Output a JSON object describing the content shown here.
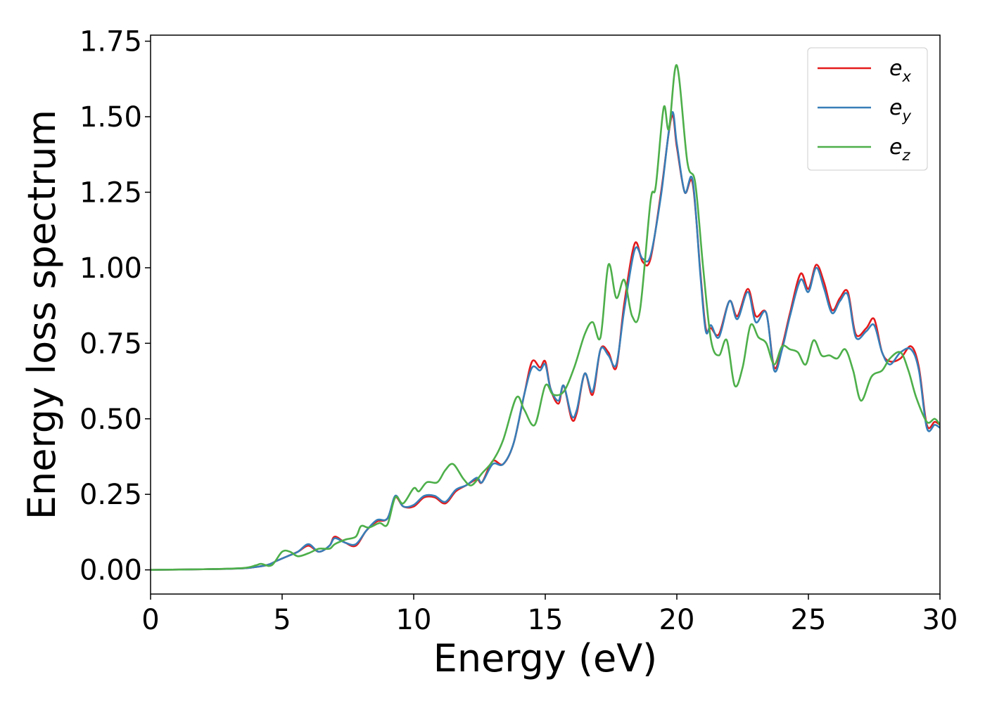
{
  "chart_data": {
    "type": "line",
    "xlabel": "Energy (eV)",
    "ylabel": "Energy loss spectrum",
    "xlim": [
      0,
      30
    ],
    "ylim": [
      -0.08,
      1.77
    ],
    "xticks": [
      "0",
      "5",
      "10",
      "15",
      "20",
      "25",
      "30"
    ],
    "yticks": [
      "0.00",
      "0.25",
      "0.50",
      "0.75",
      "1.00",
      "1.25",
      "1.50",
      "1.75"
    ],
    "grid": false,
    "legend_position": "top-right",
    "series": [
      {
        "name": "e_x",
        "legend_base": "e",
        "legend_sub": "x",
        "color": "#e41a1c",
        "x": [
          0,
          2,
          3.5,
          4.2,
          4.5,
          4.8,
          5.2,
          5.6,
          6.0,
          6.4,
          6.8,
          7.0,
          7.4,
          7.8,
          8.2,
          8.6,
          9.0,
          9.3,
          9.6,
          10.0,
          10.4,
          10.8,
          11.2,
          11.6,
          12.0,
          12.4,
          12.6,
          13.0,
          13.4,
          13.8,
          14.2,
          14.5,
          14.8,
          15.0,
          15.2,
          15.5,
          15.7,
          16.0,
          16.2,
          16.5,
          16.8,
          17.1,
          17.4,
          17.7,
          18.0,
          18.4,
          18.7,
          19.0,
          19.4,
          19.8,
          20.0,
          20.3,
          20.6,
          20.9,
          21.1,
          21.3,
          21.6,
          22.0,
          22.3,
          22.7,
          23.0,
          23.4,
          23.7,
          24.0,
          24.3,
          24.7,
          25.0,
          25.3,
          25.6,
          25.9,
          26.2,
          26.5,
          26.8,
          27.2,
          27.5,
          27.8,
          28.1,
          28.5,
          28.9,
          29.2,
          29.5,
          29.8,
          30
        ],
        "y": [
          0.0,
          0.002,
          0.005,
          0.012,
          0.018,
          0.03,
          0.045,
          0.06,
          0.08,
          0.06,
          0.08,
          0.11,
          0.09,
          0.08,
          0.13,
          0.16,
          0.17,
          0.24,
          0.21,
          0.21,
          0.24,
          0.24,
          0.22,
          0.26,
          0.28,
          0.3,
          0.29,
          0.36,
          0.35,
          0.42,
          0.58,
          0.69,
          0.67,
          0.69,
          0.6,
          0.55,
          0.61,
          0.5,
          0.52,
          0.65,
          0.58,
          0.73,
          0.72,
          0.67,
          0.88,
          1.08,
          1.02,
          1.03,
          1.25,
          1.5,
          1.4,
          1.25,
          1.28,
          0.98,
          0.8,
          0.8,
          0.78,
          0.89,
          0.84,
          0.93,
          0.84,
          0.85,
          0.67,
          0.74,
          0.85,
          0.98,
          0.93,
          1.01,
          0.95,
          0.86,
          0.9,
          0.92,
          0.78,
          0.8,
          0.83,
          0.72,
          0.69,
          0.7,
          0.74,
          0.67,
          0.48,
          0.49,
          0.48
        ]
      },
      {
        "name": "e_y",
        "legend_base": "e",
        "legend_sub": "y",
        "color": "#377eb8",
        "x": [
          0,
          2,
          3.5,
          4.2,
          4.5,
          4.8,
          5.2,
          5.6,
          6.0,
          6.4,
          6.8,
          7.0,
          7.4,
          7.8,
          8.2,
          8.6,
          9.0,
          9.3,
          9.6,
          10.0,
          10.4,
          10.8,
          11.2,
          11.6,
          12.0,
          12.4,
          12.6,
          13.0,
          13.4,
          13.8,
          14.2,
          14.5,
          14.8,
          15.0,
          15.2,
          15.5,
          15.7,
          16.0,
          16.2,
          16.5,
          16.8,
          17.1,
          17.4,
          17.7,
          18.0,
          18.4,
          18.7,
          19.0,
          19.4,
          19.8,
          20.0,
          20.3,
          20.6,
          20.9,
          21.1,
          21.3,
          21.6,
          22.0,
          22.3,
          22.7,
          23.0,
          23.4,
          23.7,
          24.0,
          24.3,
          24.7,
          25.0,
          25.3,
          25.6,
          25.9,
          26.2,
          26.5,
          26.8,
          27.2,
          27.5,
          27.8,
          28.1,
          28.5,
          28.9,
          29.2,
          29.5,
          29.8,
          30
        ],
        "y": [
          0.0,
          0.002,
          0.005,
          0.012,
          0.018,
          0.03,
          0.045,
          0.06,
          0.085,
          0.06,
          0.08,
          0.105,
          0.09,
          0.085,
          0.13,
          0.165,
          0.17,
          0.245,
          0.21,
          0.215,
          0.245,
          0.245,
          0.225,
          0.265,
          0.28,
          0.305,
          0.29,
          0.35,
          0.35,
          0.42,
          0.58,
          0.67,
          0.66,
          0.68,
          0.6,
          0.56,
          0.61,
          0.51,
          0.53,
          0.65,
          0.59,
          0.73,
          0.71,
          0.68,
          0.86,
          1.06,
          1.03,
          1.04,
          1.24,
          1.51,
          1.41,
          1.25,
          1.29,
          0.97,
          0.79,
          0.81,
          0.77,
          0.89,
          0.83,
          0.92,
          0.82,
          0.85,
          0.66,
          0.73,
          0.84,
          0.96,
          0.92,
          1.0,
          0.93,
          0.85,
          0.89,
          0.91,
          0.77,
          0.79,
          0.81,
          0.72,
          0.68,
          0.72,
          0.73,
          0.66,
          0.47,
          0.48,
          0.47
        ]
      },
      {
        "name": "e_z",
        "legend_base": "e",
        "legend_sub": "z",
        "color": "#4daf4a",
        "x": [
          0,
          2,
          3.5,
          4.0,
          4.2,
          4.6,
          5.0,
          5.3,
          5.6,
          6.0,
          6.4,
          6.8,
          7.0,
          7.4,
          7.8,
          8.0,
          8.3,
          8.7,
          9.0,
          9.3,
          9.6,
          10.0,
          10.2,
          10.5,
          10.9,
          11.2,
          11.5,
          11.9,
          12.2,
          12.6,
          13.0,
          13.4,
          13.9,
          14.2,
          14.6,
          15.0,
          15.3,
          15.7,
          16.1,
          16.5,
          16.8,
          17.1,
          17.4,
          17.7,
          18.0,
          18.3,
          18.6,
          19.0,
          19.2,
          19.5,
          19.7,
          20.0,
          20.4,
          20.7,
          21.0,
          21.3,
          21.6,
          21.9,
          22.2,
          22.5,
          22.8,
          23.1,
          23.4,
          23.7,
          24.0,
          24.3,
          24.6,
          24.9,
          25.2,
          25.5,
          25.8,
          26.1,
          26.4,
          26.7,
          27.0,
          27.4,
          27.8,
          28.1,
          28.5,
          28.8,
          29.1,
          29.5,
          29.8,
          30
        ],
        "y": [
          0.0,
          0.002,
          0.006,
          0.015,
          0.02,
          0.015,
          0.06,
          0.06,
          0.045,
          0.055,
          0.07,
          0.07,
          0.085,
          0.1,
          0.11,
          0.145,
          0.14,
          0.155,
          0.15,
          0.24,
          0.22,
          0.27,
          0.26,
          0.29,
          0.29,
          0.33,
          0.35,
          0.3,
          0.28,
          0.32,
          0.36,
          0.43,
          0.57,
          0.53,
          0.48,
          0.61,
          0.58,
          0.59,
          0.67,
          0.78,
          0.82,
          0.77,
          1.01,
          0.9,
          0.96,
          0.84,
          0.86,
          1.22,
          1.27,
          1.53,
          1.46,
          1.67,
          1.35,
          1.28,
          1.0,
          0.76,
          0.71,
          0.76,
          0.61,
          0.67,
          0.81,
          0.77,
          0.75,
          0.68,
          0.74,
          0.73,
          0.72,
          0.68,
          0.76,
          0.71,
          0.71,
          0.7,
          0.73,
          0.66,
          0.56,
          0.64,
          0.66,
          0.7,
          0.72,
          0.66,
          0.57,
          0.49,
          0.5,
          0.48
        ]
      }
    ]
  }
}
